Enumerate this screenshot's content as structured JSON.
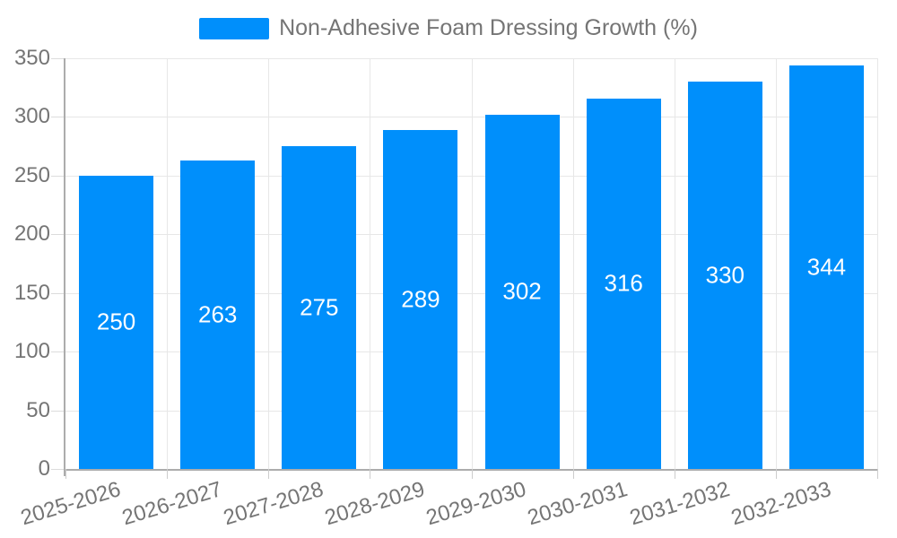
{
  "legend": {
    "label": "Non-Adhesive Foam Dressing Growth (%)"
  },
  "colors": {
    "bar": "#008FFB",
    "value_label": "#ffffff",
    "axis_text": "#757575",
    "grid": "#e7e7e7",
    "axis_line": "#acacac"
  },
  "chart_data": {
    "type": "bar",
    "title": "Non-Adhesive Foam Dressing Growth (%)",
    "categories": [
      "2025-2026",
      "2026-2027",
      "2027-2028",
      "2028-2029",
      "2029-2030",
      "2030-2031",
      "2031-2032",
      "2032-2033"
    ],
    "series": [
      {
        "name": "Non-Adhesive Foam Dressing Growth (%)",
        "values": [
          250,
          263,
          275,
          289,
          302,
          316,
          330,
          344
        ]
      }
    ],
    "value_labels_shown": true,
    "xlabel": "",
    "ylabel": "",
    "ylim": [
      0,
      350
    ],
    "y_ticks": [
      0,
      50,
      100,
      150,
      200,
      250,
      300,
      350
    ],
    "grid": true,
    "legend_position": "top",
    "x_label_rotation_deg": -17
  }
}
